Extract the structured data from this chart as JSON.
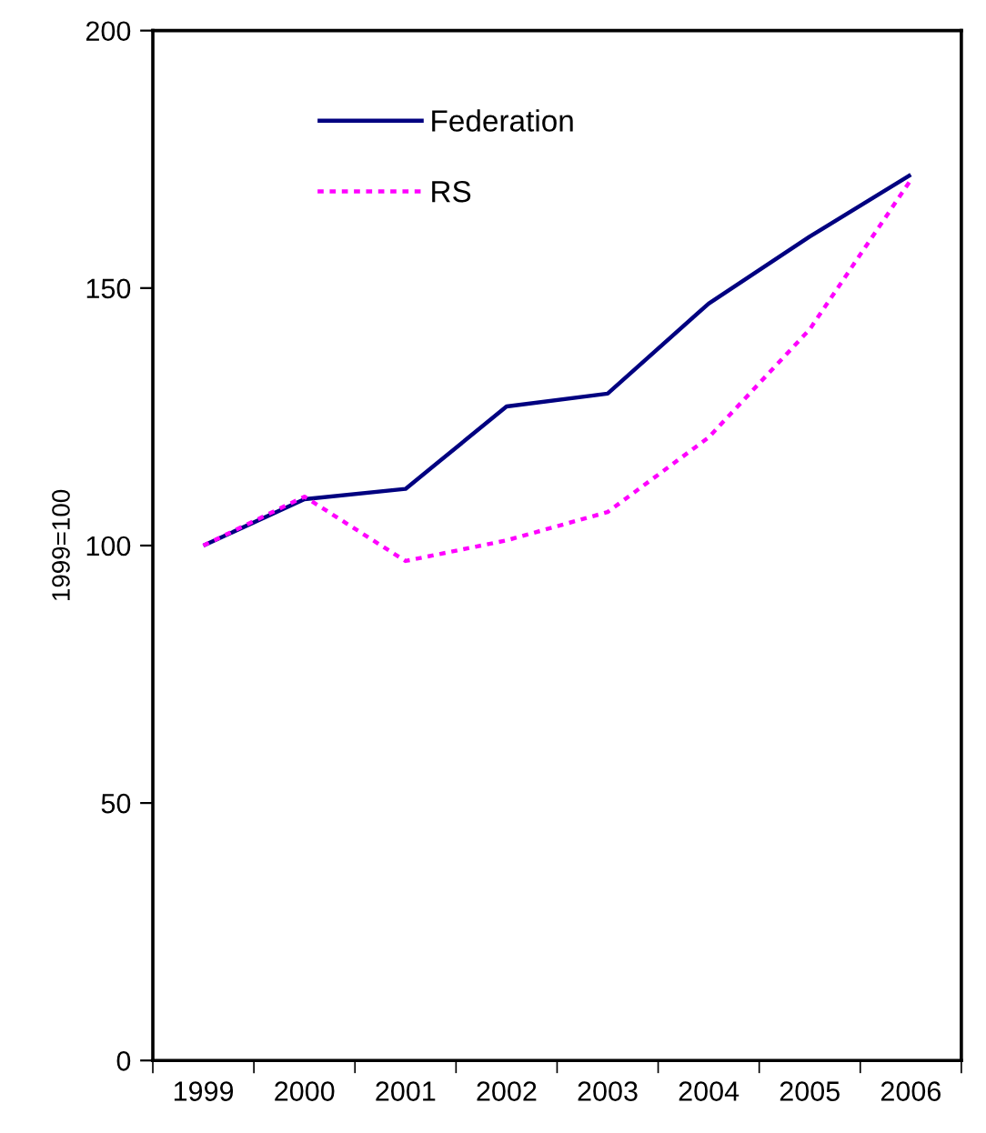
{
  "chart_data": {
    "type": "line",
    "ylabel": "1999=100",
    "categories": [
      "1999",
      "2000",
      "2001",
      "2002",
      "2003",
      "2004",
      "2005",
      "2006"
    ],
    "series": [
      {
        "name": "Federation",
        "color": "#000080",
        "line_style": "solid",
        "values": [
          100,
          109,
          111,
          127,
          129.5,
          147,
          160,
          172
        ]
      },
      {
        "name": "RS",
        "color": "#ff00ff",
        "line_style": "dotted",
        "values": [
          100,
          109.5,
          97,
          101,
          106.5,
          121,
          142,
          171
        ]
      }
    ],
    "ylim": [
      0,
      200
    ],
    "yticks": [
      0,
      50,
      100,
      150,
      200
    ],
    "grid": false,
    "legend": "top left",
    "marker": "none"
  }
}
